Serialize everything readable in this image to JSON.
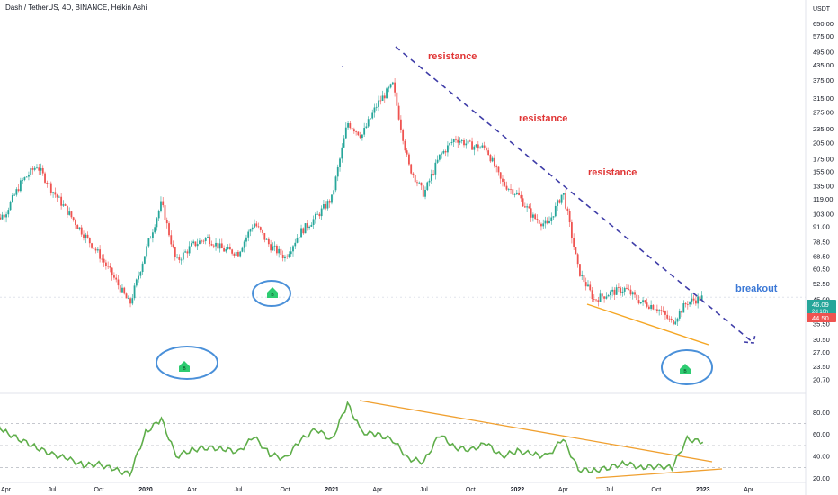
{
  "header": {
    "title": "Dash / TetherUS, 4D, BINANCE, Heikin Ashi"
  },
  "currency_label": "USDT",
  "colors": {
    "up": "#26a69a",
    "down": "#ef5350",
    "trend_dashed": "#3f3da8",
    "support": "#f5a623",
    "rsi_line": "#5fae4a",
    "rsi_trend": "#f0a030",
    "circle": "#4a90d9",
    "annotation": "#e03535",
    "breakout": "#3b78d6",
    "marker": "#2ecc71"
  },
  "annotations": {
    "resistance_1": "resistance",
    "resistance_2": "resistance",
    "resistance_3": "resistance",
    "breakout": "breakout",
    "marker_1": "B",
    "marker_2": "B",
    "marker_3": "B"
  },
  "price_badges": {
    "current": "46.09",
    "countdown": "2d 10h",
    "low": "44.50"
  },
  "chart_data": {
    "type": "candlestick",
    "subtype": "Heikin Ashi",
    "scale": "log",
    "ylim": [
      19,
      700
    ],
    "price_ticks": [
      "650.00",
      "575.00",
      "495.00",
      "435.00",
      "375.00",
      "315.00",
      "275.00",
      "235.00",
      "205.00",
      "175.00",
      "155.00",
      "135.00",
      "119.00",
      "103.00",
      "91.00",
      "78.50",
      "68.50",
      "60.50",
      "52.50",
      "45.09",
      "35.50",
      "30.50",
      "27.00",
      "23.50",
      "20.70"
    ],
    "x_ticks": [
      "Apr",
      "Jul",
      "Oct",
      "2020",
      "Apr",
      "Jul",
      "Oct",
      "2021",
      "Apr",
      "Jul",
      "Oct",
      "2022",
      "Apr",
      "Jul",
      "Oct",
      "2023",
      "Apr"
    ],
    "x_tick_dates": [
      "2019-04",
      "2019-07",
      "2019-10",
      "2020-01",
      "2020-04",
      "2020-07",
      "2020-10",
      "2021-01",
      "2021-04",
      "2021-07",
      "2021-10",
      "2022-01",
      "2022-04",
      "2022-07",
      "2022-10",
      "2023-01",
      "2023-04"
    ],
    "price_path": [
      [
        "2019-03",
        92
      ],
      [
        "2019-04",
        105
      ],
      [
        "2019-05",
        140
      ],
      [
        "2019-06",
        165
      ],
      [
        "2019-07",
        130
      ],
      [
        "2019-08",
        105
      ],
      [
        "2019-09",
        85
      ],
      [
        "2019-10",
        70
      ],
      [
        "2019-11",
        55
      ],
      [
        "2019-12",
        43
      ],
      [
        "2020-01",
        72
      ],
      [
        "2020-02",
        115
      ],
      [
        "2020-03",
        65
      ],
      [
        "2020-04",
        76
      ],
      [
        "2020-05",
        82
      ],
      [
        "2020-06",
        73
      ],
      [
        "2020-07",
        71
      ],
      [
        "2020-08",
        95
      ],
      [
        "2020-09",
        76
      ],
      [
        "2020-10",
        68
      ],
      [
        "2020-11",
        87
      ],
      [
        "2020-12",
        100
      ],
      [
        "2021-01",
        120
      ],
      [
        "2021-02",
        250
      ],
      [
        "2021-03",
        220
      ],
      [
        "2021-04",
        300
      ],
      [
        "2021-05",
        360
      ],
      [
        "2021-06",
        165
      ],
      [
        "2021-07",
        125
      ],
      [
        "2021-08",
        180
      ],
      [
        "2021-09",
        215
      ],
      [
        "2021-10",
        200
      ],
      [
        "2021-11",
        195
      ],
      [
        "2021-12",
        140
      ],
      [
        "2022-01",
        125
      ],
      [
        "2022-02",
        100
      ],
      [
        "2022-03",
        92
      ],
      [
        "2022-04",
        128
      ],
      [
        "2022-05",
        60
      ],
      [
        "2022-06",
        45
      ],
      [
        "2022-07",
        48
      ],
      [
        "2022-08",
        50
      ],
      [
        "2022-09",
        44
      ],
      [
        "2022-10",
        42
      ],
      [
        "2022-11",
        36
      ],
      [
        "2022-12",
        44
      ],
      [
        "2023-01",
        46
      ]
    ],
    "rsi": {
      "ylim": [
        18,
        95
      ],
      "ticks": [
        "80.00",
        "60.00",
        "40.00",
        "20.00"
      ],
      "values": [
        [
          "2019-03",
          75
        ],
        [
          "2019-04",
          62
        ],
        [
          "2019-05",
          55
        ],
        [
          "2019-06",
          48
        ],
        [
          "2019-07",
          42
        ],
        [
          "2019-08",
          38
        ],
        [
          "2019-09",
          32
        ],
        [
          "2019-10",
          33
        ],
        [
          "2019-11",
          28
        ],
        [
          "2019-12",
          24
        ],
        [
          "2020-01",
          62
        ],
        [
          "2020-02",
          74
        ],
        [
          "2020-03",
          40
        ],
        [
          "2020-04",
          46
        ],
        [
          "2020-05",
          48
        ],
        [
          "2020-06",
          47
        ],
        [
          "2020-07",
          44
        ],
        [
          "2020-08",
          58
        ],
        [
          "2020-09",
          42
        ],
        [
          "2020-10",
          38
        ],
        [
          "2020-11",
          55
        ],
        [
          "2020-12",
          65
        ],
        [
          "2021-01",
          55
        ],
        [
          "2021-02",
          88
        ],
        [
          "2021-03",
          62
        ],
        [
          "2021-04",
          60
        ],
        [
          "2021-05",
          55
        ],
        [
          "2021-06",
          38
        ],
        [
          "2021-07",
          35
        ],
        [
          "2021-08",
          60
        ],
        [
          "2021-09",
          48
        ],
        [
          "2021-10",
          46
        ],
        [
          "2021-11",
          52
        ],
        [
          "2021-12",
          40
        ],
        [
          "2022-01",
          45
        ],
        [
          "2022-02",
          42
        ],
        [
          "2022-03",
          40
        ],
        [
          "2022-04",
          56
        ],
        [
          "2022-05",
          28
        ],
        [
          "2022-06",
          27
        ],
        [
          "2022-07",
          30
        ],
        [
          "2022-08",
          34
        ],
        [
          "2022-09",
          30
        ],
        [
          "2022-10",
          31
        ],
        [
          "2022-11",
          30
        ],
        [
          "2022-12",
          56
        ],
        [
          "2023-01",
          53
        ]
      ]
    }
  }
}
